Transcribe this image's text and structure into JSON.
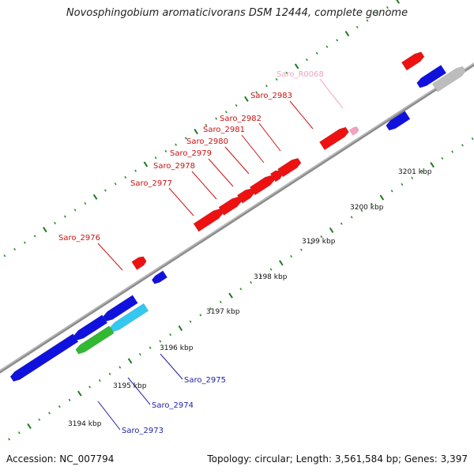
{
  "title": "Novosphingobium aromaticivorans DSM 12444, complete genome",
  "footer": {
    "accession": "Accession: NC_007794",
    "topology": "Topology: circular; Length: 3,561,584 bp; Genes: 3,397"
  },
  "colors": {
    "background": "#ffffff",
    "backbone": "#8c8c8c",
    "tick_major": "#1f7a1f",
    "tick_minor": "#2e8b2e",
    "gene_forward": "#ee1111",
    "gene_reverse": "#1111dd",
    "gene_rna": "#f4a0c0",
    "gene_gray": "#bdbdbd",
    "gene_cyan": "#33c8f0",
    "gene_green": "#33b833",
    "label_forward": "#cc1111",
    "label_reverse": "#2222aa",
    "label_rna": "#f4a0c0"
  },
  "scale": {
    "unit": "kbp",
    "marks": [
      {
        "kbp": 3194,
        "label": "3194 kbp"
      },
      {
        "kbp": 3195,
        "label": "3195 kbp"
      },
      {
        "kbp": 3196,
        "label": "3196 kbp"
      },
      {
        "kbp": 3197,
        "label": "3197 kbp"
      },
      {
        "kbp": 3198,
        "label": "3198 kbp"
      },
      {
        "kbp": 3199,
        "label": "3199 kbp"
      },
      {
        "kbp": 3200,
        "label": "3200 kbp"
      },
      {
        "kbp": 3201,
        "label": "3201 kbp"
      }
    ]
  },
  "labels": [
    {
      "name": "Saro_R0068",
      "kind": "rna"
    },
    {
      "name": "Saro_2983",
      "kind": "forward"
    },
    {
      "name": "Saro_2982",
      "kind": "forward"
    },
    {
      "name": "Saro_2981",
      "kind": "forward"
    },
    {
      "name": "Saro_2980",
      "kind": "forward"
    },
    {
      "name": "Saro_2979",
      "kind": "forward"
    },
    {
      "name": "Saro_2978",
      "kind": "forward"
    },
    {
      "name": "Saro_2977",
      "kind": "forward"
    },
    {
      "name": "Saro_2976",
      "kind": "forward"
    },
    {
      "name": "Saro_2975",
      "kind": "reverse"
    },
    {
      "name": "Saro_2974",
      "kind": "reverse"
    },
    {
      "name": "Saro_2973",
      "kind": "reverse"
    }
  ]
}
